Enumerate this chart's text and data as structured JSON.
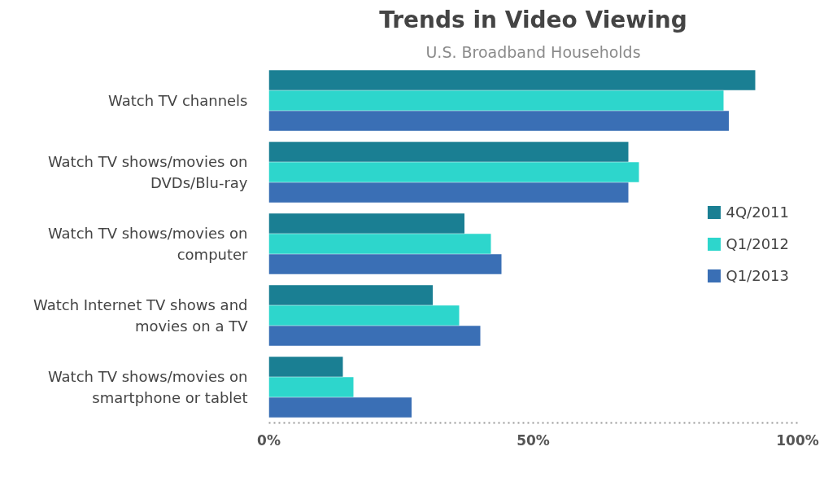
{
  "chart_data": {
    "type": "bar",
    "orientation": "horizontal",
    "title": "Trends in Video Viewing",
    "subtitle": "U.S. Broadband Households",
    "categories": [
      "Watch TV channels",
      "Watch TV shows/movies on DVDs/Blu-ray",
      "Watch TV shows/movies on computer",
      "Watch Internet TV shows and movies on a TV",
      "Watch TV shows/movies on smartphone or tablet"
    ],
    "series": [
      {
        "name": "4Q/2011",
        "color": "#1a7f93",
        "values": [
          92,
          68,
          37,
          31,
          14
        ]
      },
      {
        "name": "Q1/2012",
        "color": "#2dd6cc",
        "values": [
          86,
          70,
          42,
          36,
          16
        ]
      },
      {
        "name": "Q1/2013",
        "color": "#3a6fb5",
        "values": [
          87,
          68,
          44,
          40,
          27
        ]
      }
    ],
    "xlim": [
      0,
      100
    ],
    "xticks": [
      {
        "value": 0,
        "label": "0%"
      },
      {
        "value": 50,
        "label": "50%"
      },
      {
        "value": 100,
        "label": "100%"
      }
    ],
    "grid": false,
    "legend": "right"
  }
}
